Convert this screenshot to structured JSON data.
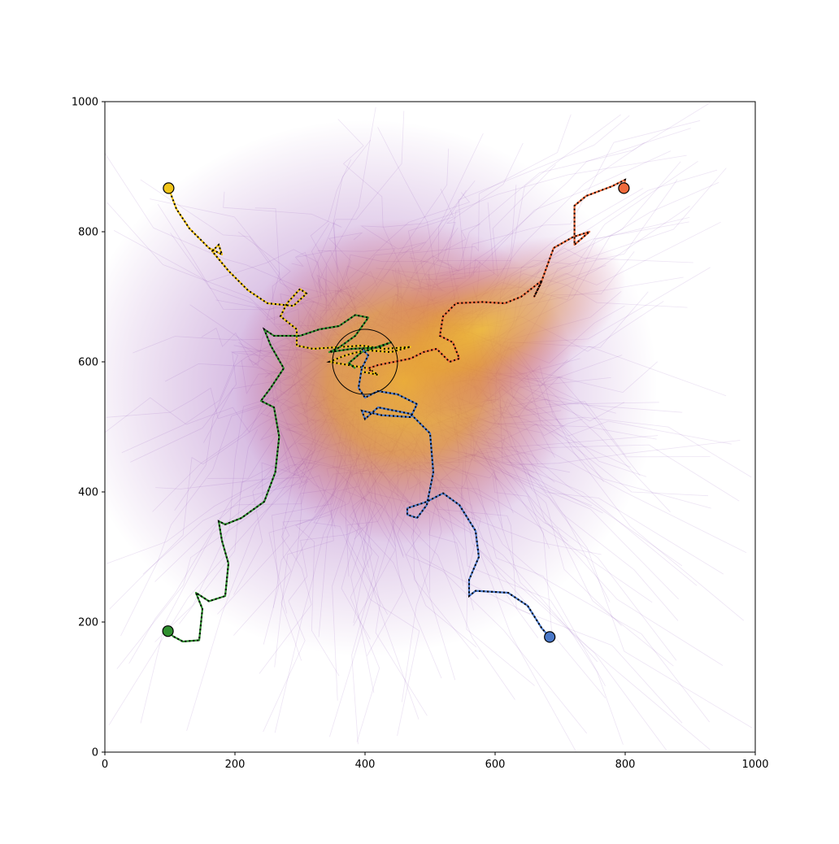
{
  "chart_data": {
    "type": "line",
    "title": "",
    "xlabel": "",
    "ylabel": "",
    "xlim": [
      0,
      1000
    ],
    "ylim": [
      0,
      1000
    ],
    "x_ticks": [
      0,
      200,
      400,
      600,
      800,
      1000
    ],
    "y_ticks": [
      0,
      200,
      400,
      600,
      800,
      1000
    ],
    "x_tick_labels": [
      "0",
      "200",
      "400",
      "600",
      "800",
      "1000"
    ],
    "y_tick_labels": [
      "0",
      "200",
      "400",
      "600",
      "800",
      "1000"
    ],
    "grid": false,
    "legend": "none",
    "background": {
      "description_colors": [
        "#5b0fa0",
        "#8e2a9c",
        "#c2477a",
        "#e8903a",
        "#f2c12a"
      ],
      "hot_center": [
        400,
        600
      ]
    },
    "target": {
      "center": [
        400,
        600
      ],
      "radius": 50,
      "color": "#000000"
    },
    "series": [
      {
        "color": "#f0c419",
        "start": [
          98,
          867
        ],
        "points": [
          [
            98,
            867
          ],
          [
            110,
            835
          ],
          [
            130,
            805
          ],
          [
            160,
            775
          ],
          [
            180,
            765
          ],
          [
            175,
            780
          ],
          [
            165,
            770
          ],
          [
            190,
            740
          ],
          [
            220,
            710
          ],
          [
            250,
            690
          ],
          [
            290,
            686
          ],
          [
            310,
            705
          ],
          [
            300,
            712
          ],
          [
            280,
            690
          ],
          [
            270,
            670
          ],
          [
            295,
            650
          ],
          [
            295,
            625
          ],
          [
            320,
            620
          ],
          [
            350,
            622
          ],
          [
            395,
            625
          ],
          [
            430,
            620
          ],
          [
            470,
            623
          ],
          [
            440,
            615
          ],
          [
            400,
            618
          ],
          [
            370,
            610
          ],
          [
            345,
            600
          ],
          [
            375,
            595
          ],
          [
            405,
            590
          ],
          [
            420,
            580
          ],
          [
            395,
            585
          ]
        ]
      },
      {
        "color": "#ef6a3c",
        "start": [
          798,
          867
        ],
        "points": [
          [
            798,
            867
          ],
          [
            800,
            880
          ],
          [
            780,
            870
          ],
          [
            740,
            855
          ],
          [
            722,
            840
          ],
          [
            722,
            780
          ],
          [
            745,
            800
          ],
          [
            720,
            792
          ],
          [
            690,
            775
          ],
          [
            670,
            720
          ],
          [
            660,
            700
          ],
          [
            672,
            725
          ],
          [
            640,
            700
          ],
          [
            615,
            690
          ],
          [
            580,
            692
          ],
          [
            540,
            690
          ],
          [
            520,
            670
          ],
          [
            515,
            640
          ],
          [
            535,
            630
          ],
          [
            545,
            605
          ],
          [
            530,
            600
          ],
          [
            510,
            620
          ],
          [
            490,
            615
          ],
          [
            470,
            605
          ],
          [
            445,
            600
          ],
          [
            420,
            595
          ],
          [
            405,
            590
          ],
          [
            410,
            585
          ]
        ]
      },
      {
        "color": "#2f8f2f",
        "start": [
          97,
          186
        ],
        "points": [
          [
            97,
            186
          ],
          [
            105,
            178
          ],
          [
            120,
            170
          ],
          [
            145,
            172
          ],
          [
            150,
            220
          ],
          [
            140,
            245
          ],
          [
            160,
            232
          ],
          [
            185,
            240
          ],
          [
            190,
            290
          ],
          [
            180,
            325
          ],
          [
            175,
            355
          ],
          [
            185,
            350
          ],
          [
            210,
            360
          ],
          [
            245,
            385
          ],
          [
            262,
            430
          ],
          [
            268,
            485
          ],
          [
            260,
            530
          ],
          [
            240,
            540
          ],
          [
            255,
            560
          ],
          [
            275,
            590
          ],
          [
            255,
            625
          ],
          [
            245,
            650
          ],
          [
            260,
            640
          ],
          [
            300,
            640
          ],
          [
            330,
            650
          ],
          [
            360,
            655
          ],
          [
            385,
            672
          ],
          [
            405,
            668
          ],
          [
            385,
            640
          ],
          [
            360,
            622
          ],
          [
            345,
            615
          ],
          [
            380,
            620
          ],
          [
            420,
            622
          ],
          [
            440,
            630
          ],
          [
            395,
            615
          ],
          [
            375,
            598
          ],
          [
            385,
            590
          ]
        ]
      },
      {
        "color": "#4a78c8",
        "start": [
          684,
          177
        ],
        "points": [
          [
            684,
            177
          ],
          [
            672,
            190
          ],
          [
            650,
            225
          ],
          [
            620,
            245
          ],
          [
            570,
            248
          ],
          [
            560,
            240
          ],
          [
            560,
            265
          ],
          [
            575,
            300
          ],
          [
            570,
            340
          ],
          [
            545,
            380
          ],
          [
            520,
            398
          ],
          [
            495,
            385
          ],
          [
            465,
            375
          ],
          [
            465,
            365
          ],
          [
            480,
            360
          ],
          [
            495,
            380
          ],
          [
            505,
            430
          ],
          [
            500,
            490
          ],
          [
            470,
            520
          ],
          [
            420,
            530
          ],
          [
            400,
            512
          ],
          [
            395,
            525
          ],
          [
            425,
            518
          ],
          [
            470,
            515
          ],
          [
            480,
            535
          ],
          [
            450,
            550
          ],
          [
            420,
            555
          ],
          [
            400,
            545
          ],
          [
            390,
            560
          ],
          [
            395,
            590
          ],
          [
            405,
            610
          ],
          [
            395,
            620
          ]
        ]
      }
    ]
  }
}
